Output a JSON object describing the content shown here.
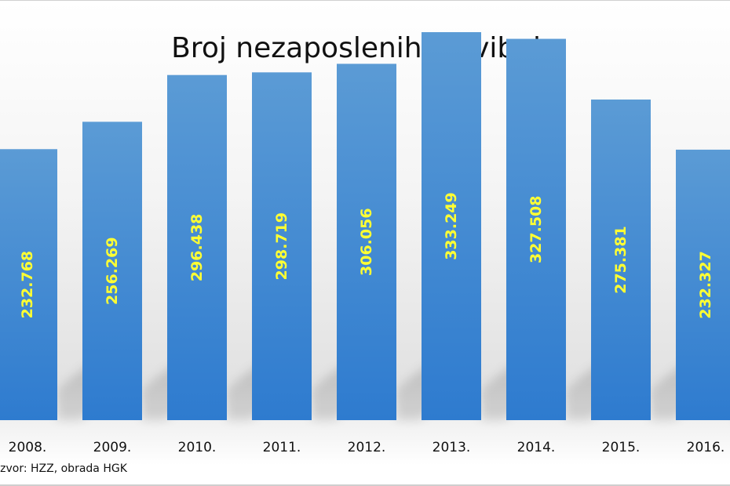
{
  "chart_data": {
    "type": "bar",
    "title": "Broj nezaposlenih u svibnju",
    "categories": [
      "2008.",
      "2009.",
      "2010.",
      "2011.",
      "2012.",
      "2013.",
      "2014.",
      "2015.",
      "2016."
    ],
    "values": [
      232768,
      256269,
      296438,
      298719,
      306056,
      333249,
      327508,
      275381,
      232327
    ],
    "data_labels": [
      "232.768",
      "256.269",
      "296.438",
      "298.719",
      "306.056",
      "333.249",
      "327.508",
      "275.381",
      "232.327"
    ],
    "source": "Izvor: HZZ, obrada HGK",
    "ylim": [
      0,
      340000
    ],
    "grid": false,
    "legend": "none",
    "colors": {
      "bar_top": "#5b9bd5",
      "bar_bottom": "#2e7bcf",
      "data_label": "#ffff33"
    }
  }
}
